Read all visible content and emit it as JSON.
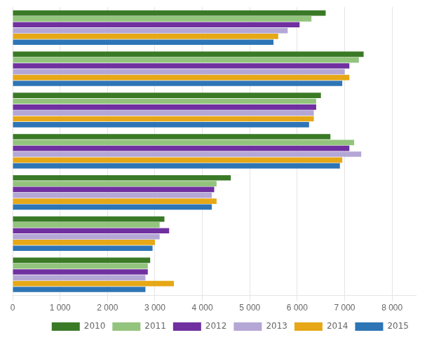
{
  "chart_data": {
    "type": "bar",
    "orientation": "horizontal",
    "categories": [
      null,
      null,
      null,
      null,
      null,
      null,
      null
    ],
    "series": [
      {
        "name": "2010",
        "color": "#3a7a27",
        "values": [
          6600,
          7400,
          6500,
          6700,
          4600,
          3200,
          2900
        ]
      },
      {
        "name": "2011",
        "color": "#93c47d",
        "values": [
          6300,
          7300,
          6400,
          7200,
          4300,
          3100,
          2850
        ]
      },
      {
        "name": "2012",
        "color": "#7030a0",
        "values": [
          6050,
          7100,
          6400,
          7100,
          4250,
          3300,
          2850
        ]
      },
      {
        "name": "2013",
        "color": "#b4a7d6",
        "values": [
          5800,
          7000,
          6350,
          7350,
          4200,
          3100,
          2800
        ]
      },
      {
        "name": "2014",
        "color": "#e6a817",
        "values": [
          5600,
          7100,
          6350,
          6950,
          4300,
          3000,
          3400
        ]
      },
      {
        "name": "2015",
        "color": "#2e75b6",
        "values": [
          5500,
          6950,
          6250,
          6900,
          4200,
          2950,
          2800
        ]
      }
    ],
    "xlim": [
      0,
      8500
    ],
    "xticks": [
      0,
      {
        "value": 1000,
        "label": "1 000"
      },
      {
        "value": 2000,
        "label": "2 000"
      },
      {
        "value": 3000,
        "label": "3 000"
      },
      {
        "value": 4000,
        "label": "4 000"
      },
      {
        "value": 5000,
        "label": "5 000"
      },
      {
        "value": 6000,
        "label": "6 000"
      },
      {
        "value": 7000,
        "label": "7 000"
      },
      {
        "value": 8000,
        "label": "8 000"
      }
    ],
    "grid": true,
    "legend": "lower right",
    "tick_labels": "x"
  }
}
